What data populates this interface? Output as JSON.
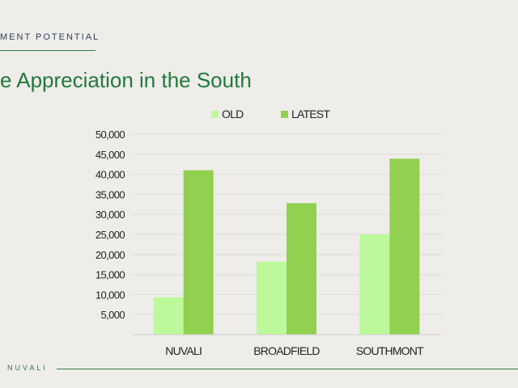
{
  "header": {
    "section_label": "MENT POTENTIAL"
  },
  "slide_title": "e Appreciation in the South",
  "footer": {
    "brand": "NUVALI"
  },
  "colors": {
    "background": "#efedea",
    "title_green": "#1f7a3a",
    "old_series": "#bbf99a",
    "latest_series": "#92d050",
    "gridline": "#dcdcdc"
  },
  "chart_data": {
    "type": "bar",
    "categories": [
      "NUVALI",
      "BROADFIELD",
      "SOUTHMONT"
    ],
    "series": [
      {
        "name": "OLD",
        "values": [
          9300,
          18200,
          25000
        ]
      },
      {
        "name": "LATEST",
        "values": [
          41000,
          32800,
          43900
        ]
      }
    ],
    "yticks": [
      "5,000",
      "10,000",
      "15,000",
      "20,000",
      "25,000",
      "30,000",
      "35,000",
      "40,000",
      "45,000",
      "50,000"
    ],
    "ylim": [
      0,
      50000
    ],
    "legend": "top",
    "grid": true
  }
}
